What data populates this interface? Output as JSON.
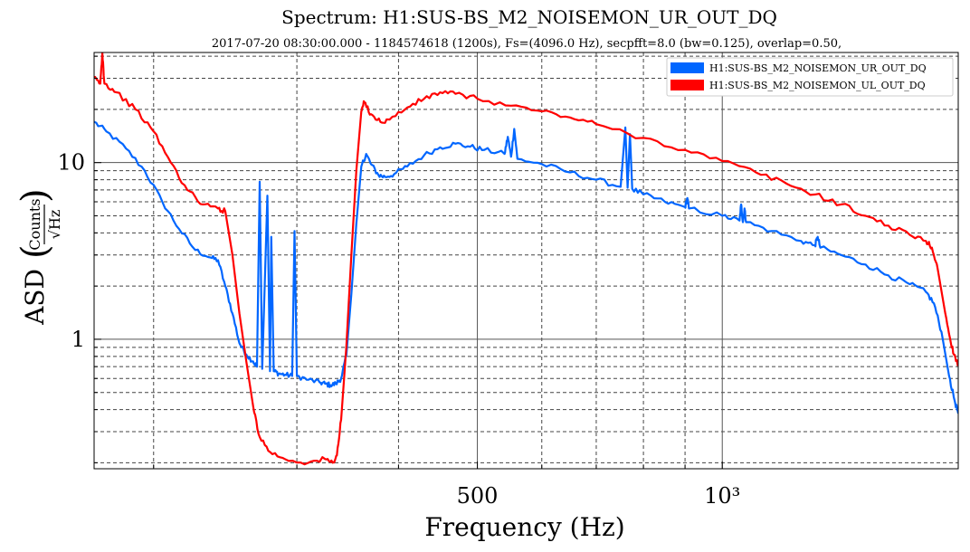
{
  "chart_data": {
    "type": "line",
    "title": "Spectrum: H1:SUS-BS_M2_NOISEMON_UR_OUT_DQ",
    "subtitle": "2017-07-20 08:30:00.000 - 1184574618 (1200s), Fs=(4096.0 Hz), secpfft=8.0 (bw=0.125), overlap=0.50,",
    "xlabel": "Frequency (Hz)",
    "ylabel_prefix": "ASD",
    "ylabel_num": "Counts",
    "ylabel_den": "√Hz",
    "x_scale": "log",
    "y_scale": "log",
    "xlim": [
      169,
      1950
    ],
    "ylim": [
      0.185,
      42
    ],
    "x_ticks": [
      {
        "value": 500,
        "label": "500"
      },
      {
        "value": 1000,
        "label": "10³"
      }
    ],
    "y_ticks": [
      {
        "value": 1,
        "label": "1"
      },
      {
        "value": 10,
        "label": "10"
      }
    ],
    "grid": true,
    "legend_position": "top-right",
    "series": [
      {
        "name": "H1:SUS-BS_M2_NOISEMON_UR_OUT_DQ",
        "color": "#0066ff",
        "points": [
          [
            169,
            17
          ],
          [
            175,
            15
          ],
          [
            185,
            12
          ],
          [
            195,
            9
          ],
          [
            205,
            6
          ],
          [
            215,
            4.2
          ],
          [
            225,
            3.2
          ],
          [
            235,
            2.9
          ],
          [
            240,
            2.8
          ],
          [
            245,
            2.0
          ],
          [
            250,
            1.4
          ],
          [
            255,
            0.95
          ],
          [
            260,
            0.82
          ],
          [
            265,
            0.75
          ],
          [
            268,
            0.7
          ],
          [
            270,
            7.8
          ],
          [
            272,
            0.68
          ],
          [
            276,
            6.5
          ],
          [
            278,
            0.66
          ],
          [
            279,
            3.8
          ],
          [
            281,
            0.66
          ],
          [
            285,
            0.64
          ],
          [
            290,
            0.63
          ],
          [
            296,
            0.62
          ],
          [
            298,
            4.1
          ],
          [
            300,
            0.62
          ],
          [
            310,
            0.59
          ],
          [
            320,
            0.57
          ],
          [
            325,
            0.56
          ],
          [
            330,
            0.55
          ],
          [
            335,
            0.56
          ],
          [
            340,
            0.6
          ],
          [
            345,
            0.8
          ],
          [
            350,
            1.8
          ],
          [
            355,
            4.5
          ],
          [
            360,
            9.5
          ],
          [
            365,
            11.2
          ],
          [
            370,
            9.8
          ],
          [
            378,
            8.5
          ],
          [
            385,
            8.3
          ],
          [
            395,
            8.6
          ],
          [
            410,
            9.5
          ],
          [
            430,
            11.0
          ],
          [
            450,
            12.2
          ],
          [
            470,
            12.8
          ],
          [
            490,
            12.3
          ],
          [
            510,
            11.8
          ],
          [
            540,
            11.2
          ],
          [
            545,
            14.0
          ],
          [
            550,
            10.8
          ],
          [
            555,
            15.5
          ],
          [
            560,
            10.5
          ],
          [
            600,
            9.8
          ],
          [
            650,
            8.8
          ],
          [
            700,
            8.0
          ],
          [
            750,
            7.3
          ],
          [
            760,
            15.8
          ],
          [
            765,
            7.2
          ],
          [
            770,
            14.5
          ],
          [
            775,
            7.1
          ],
          [
            800,
            6.6
          ],
          [
            850,
            6.0
          ],
          [
            900,
            5.6
          ],
          [
            906,
            6.3
          ],
          [
            910,
            5.5
          ],
          [
            1000,
            5.0
          ],
          [
            1050,
            4.7
          ],
          [
            1055,
            5.8
          ],
          [
            1060,
            4.6
          ],
          [
            1065,
            5.5
          ],
          [
            1070,
            4.6
          ],
          [
            1150,
            4.1
          ],
          [
            1250,
            3.6
          ],
          [
            1300,
            3.4
          ],
          [
            1310,
            3.8
          ],
          [
            1320,
            3.3
          ],
          [
            1400,
            3.0
          ],
          [
            1500,
            2.65
          ],
          [
            1600,
            2.3
          ],
          [
            1700,
            2.05
          ],
          [
            1780,
            1.85
          ],
          [
            1820,
            1.6
          ],
          [
            1860,
            1.1
          ],
          [
            1900,
            0.62
          ],
          [
            1930,
            0.45
          ],
          [
            1950,
            0.38
          ]
        ]
      },
      {
        "name": "H1:SUS-BS_M2_NOISEMON_UL_OUT_DQ",
        "color": "#ff0000",
        "points": [
          [
            169,
            30
          ],
          [
            172,
            28
          ],
          [
            173,
            42
          ],
          [
            174,
            28
          ],
          [
            180,
            25
          ],
          [
            190,
            20
          ],
          [
            200,
            15
          ],
          [
            210,
            10
          ],
          [
            220,
            7
          ],
          [
            230,
            5.8
          ],
          [
            240,
            5.5
          ],
          [
            245,
            5.3
          ],
          [
            250,
            3.0
          ],
          [
            255,
            1.4
          ],
          [
            260,
            0.75
          ],
          [
            265,
            0.42
          ],
          [
            270,
            0.28
          ],
          [
            278,
            0.23
          ],
          [
            290,
            0.21
          ],
          [
            310,
            0.2
          ],
          [
            325,
            0.21
          ],
          [
            332,
            0.2
          ],
          [
            336,
            0.22
          ],
          [
            340,
            0.35
          ],
          [
            345,
            0.9
          ],
          [
            350,
            3.0
          ],
          [
            355,
            9.0
          ],
          [
            360,
            19.5
          ],
          [
            363,
            22.0
          ],
          [
            370,
            18.8
          ],
          [
            380,
            17.0
          ],
          [
            390,
            17.5
          ],
          [
            410,
            20.5
          ],
          [
            430,
            23.0
          ],
          [
            450,
            25.0
          ],
          [
            470,
            24.5
          ],
          [
            500,
            23.0
          ],
          [
            550,
            21.0
          ],
          [
            600,
            19.5
          ],
          [
            650,
            18.0
          ],
          [
            700,
            16.5
          ],
          [
            800,
            13.8
          ],
          [
            900,
            11.8
          ],
          [
            1000,
            10.2
          ],
          [
            1100,
            8.8
          ],
          [
            1200,
            7.6
          ],
          [
            1300,
            6.6
          ],
          [
            1400,
            5.8
          ],
          [
            1500,
            5.0
          ],
          [
            1600,
            4.4
          ],
          [
            1700,
            3.9
          ],
          [
            1780,
            3.6
          ],
          [
            1810,
            3.3
          ],
          [
            1840,
            2.5
          ],
          [
            1880,
            1.4
          ],
          [
            1910,
            0.95
          ],
          [
            1935,
            0.78
          ],
          [
            1950,
            0.72
          ]
        ]
      }
    ]
  }
}
